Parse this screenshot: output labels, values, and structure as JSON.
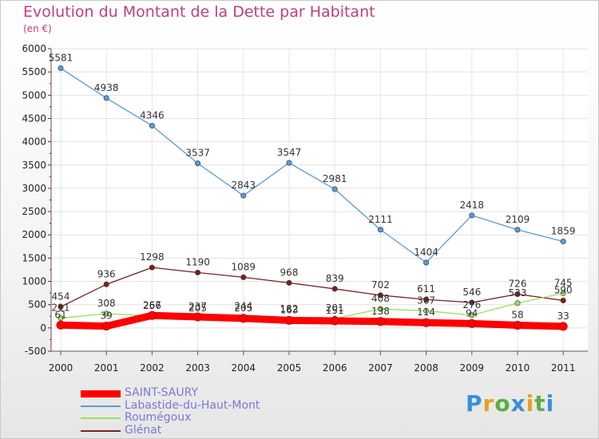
{
  "title": "Evolution du Montant de la Dette par Habitant",
  "subtitle": "(en €)",
  "chart_data": {
    "type": "line",
    "x": [
      "2000",
      "2001",
      "2002",
      "2003",
      "2004",
      "2005",
      "2006",
      "2007",
      "2008",
      "2009",
      "2010",
      "2011"
    ],
    "ylim": [
      -500,
      6000
    ],
    "yticks": [
      -500,
      0,
      500,
      1000,
      1500,
      2000,
      2500,
      3000,
      3500,
      4000,
      4500,
      5000,
      5500,
      6000
    ],
    "series": [
      {
        "name": "SAINT-SAURY",
        "color": "#ff0000",
        "values": [
          61,
          39,
          267,
          237,
          205,
          163,
          151,
          138,
          114,
          94,
          58,
          33
        ]
      },
      {
        "name": "Labastide-du-Haut-Mont",
        "color": "#5a9ad6",
        "values": [
          5581,
          4938,
          4346,
          3537,
          2843,
          3547,
          2981,
          2111,
          1404,
          2418,
          2109,
          1859
        ]
      },
      {
        "name": "Roumégoux",
        "color": "#99e060",
        "values": [
          211,
          308,
          256,
          205,
          244,
          182,
          201,
          408,
          367,
          276,
          533,
          745
        ]
      },
      {
        "name": "Glénat",
        "color": "#7a2020",
        "values": [
          454,
          936,
          1298,
          1190,
          1089,
          968,
          839,
          702,
          611,
          546,
          726,
          590
        ]
      }
    ]
  },
  "logo": {
    "text": "Proxiti"
  }
}
